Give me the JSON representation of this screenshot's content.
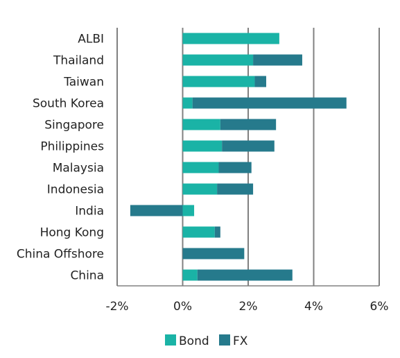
{
  "chart_data": {
    "type": "bar",
    "orientation": "horizontal",
    "stacked": true,
    "title": "",
    "xlabel": "",
    "ylabel": "",
    "x_tick_labels": [
      "-2%",
      "0%",
      "2%",
      "4%",
      "6%"
    ],
    "x_ticks": [
      -2,
      0,
      2,
      4,
      6
    ],
    "xlim": [
      -2,
      6
    ],
    "grid": "vertical",
    "legend_placement": "bottom",
    "categories": [
      "ALBI",
      "Thailand",
      "Taiwan",
      "South Korea",
      "Singapore",
      "Philippines",
      "Malaysia",
      "Indonesia",
      "India",
      "Hong Kong",
      "China Offshore",
      "China"
    ],
    "series": [
      {
        "name": "Bond",
        "color": "#1ab3a6",
        "values": [
          2.95,
          2.15,
          2.2,
          0.3,
          1.15,
          1.2,
          1.1,
          1.05,
          0.35,
          0.98,
          0.0,
          0.45
        ]
      },
      {
        "name": "FX",
        "color": "#267a8c",
        "values": [
          0.0,
          1.5,
          0.35,
          4.7,
          1.7,
          1.6,
          1.0,
          1.1,
          -1.6,
          0.17,
          1.88,
          2.9
        ]
      }
    ]
  }
}
